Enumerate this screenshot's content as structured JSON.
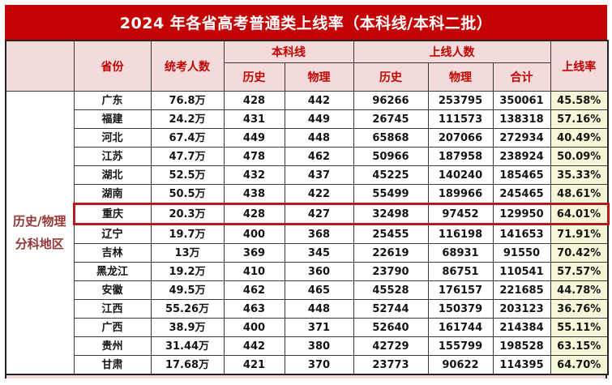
{
  "title": "2024 年各省高考普通类上线率（本科线/本科二批）",
  "section": {
    "line1": "历史/物理",
    "line2": "分科地区"
  },
  "headers": {
    "province": "省份",
    "candidates": "统考人数",
    "line_group": "本科线",
    "above_group": "上线人数",
    "line_history": "历史",
    "line_physics": "物理",
    "above_history": "历史",
    "above_physics": "物理",
    "above_total": "合计",
    "rate": "上线率"
  },
  "colors": {
    "title_bg": "#c40404",
    "header_bg": "#f3dbdb",
    "header_text": "#c00000",
    "rate_bg": "#f6f6d8",
    "sidebar_text": "#943634",
    "highlight_border": "#b21c1c"
  },
  "chart_data": {
    "type": "table",
    "title": "2024 年各省高考普通类上线率（本科线/本科二批）",
    "section_label": "历史/物理分科地区",
    "columns": [
      "省份",
      "统考人数",
      "本科线-历史",
      "本科线-物理",
      "上线人数-历史",
      "上线人数-物理",
      "上线人数-合计",
      "上线率"
    ],
    "highlight_row_index": 6,
    "highlight_province": "重庆",
    "rows": [
      [
        "广东",
        "76.8万",
        "428",
        "442",
        "96266",
        "253795",
        "350061",
        "45.58%"
      ],
      [
        "福建",
        "24.2万",
        "431",
        "449",
        "26745",
        "111573",
        "138318",
        "57.16%"
      ],
      [
        "河北",
        "67.4万",
        "449",
        "448",
        "65868",
        "207066",
        "272934",
        "40.49%"
      ],
      [
        "江苏",
        "47.7万",
        "478",
        "462",
        "50966",
        "187958",
        "238924",
        "50.09%"
      ],
      [
        "湖北",
        "52.5万",
        "432",
        "437",
        "45225",
        "140240",
        "185465",
        "35.33%"
      ],
      [
        "湖南",
        "50.5万",
        "438",
        "422",
        "55499",
        "189966",
        "245465",
        "48.61%"
      ],
      [
        "重庆",
        "20.3万",
        "428",
        "427",
        "32498",
        "97452",
        "129950",
        "64.01%"
      ],
      [
        "辽宁",
        "19.7万",
        "400",
        "368",
        "25455",
        "116198",
        "141653",
        "71.91%"
      ],
      [
        "吉林",
        "13万",
        "369",
        "345",
        "22619",
        "68931",
        "91550",
        "70.42%"
      ],
      [
        "黑龙江",
        "19.2万",
        "410",
        "360",
        "23790",
        "86751",
        "110541",
        "57.57%"
      ],
      [
        "安徽",
        "49.5万",
        "462",
        "465",
        "45528",
        "176157",
        "221685",
        "44.78%"
      ],
      [
        "江西",
        "55.26万",
        "463",
        "448",
        "52744",
        "150379",
        "203123",
        "36.76%"
      ],
      [
        "广西",
        "38.9万",
        "400",
        "371",
        "52640",
        "161744",
        "214384",
        "55.11%"
      ],
      [
        "贵州",
        "31.44万",
        "442",
        "380",
        "42729",
        "155799",
        "198528",
        "63.15%"
      ],
      [
        "甘肃",
        "17.68万",
        "421",
        "370",
        "23773",
        "90622",
        "114395",
        "64.70%"
      ]
    ]
  }
}
